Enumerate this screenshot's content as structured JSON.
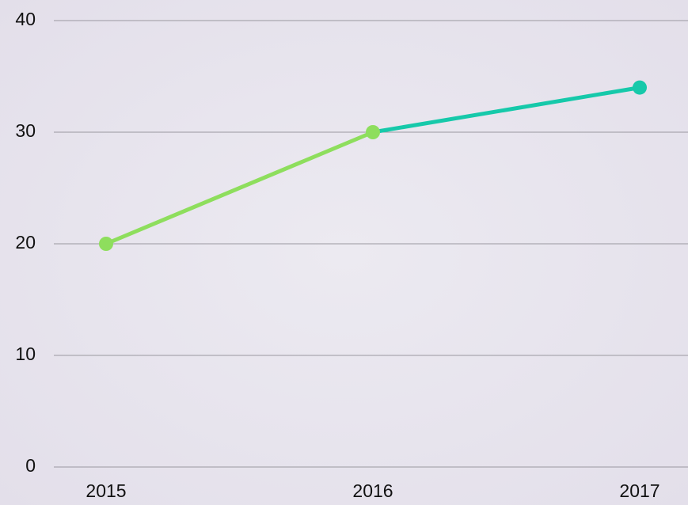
{
  "chart_data": {
    "type": "line",
    "categories": [
      "2015",
      "2016",
      "2017"
    ],
    "series": [
      {
        "values": [
          20,
          30,
          34
        ],
        "colors": [
          "#8ede5d",
          "#8ede5d",
          "#16c9aa"
        ]
      }
    ],
    "ylim": [
      0,
      40
    ],
    "yticks": [
      0,
      10,
      20,
      30,
      40
    ],
    "grid": true
  }
}
